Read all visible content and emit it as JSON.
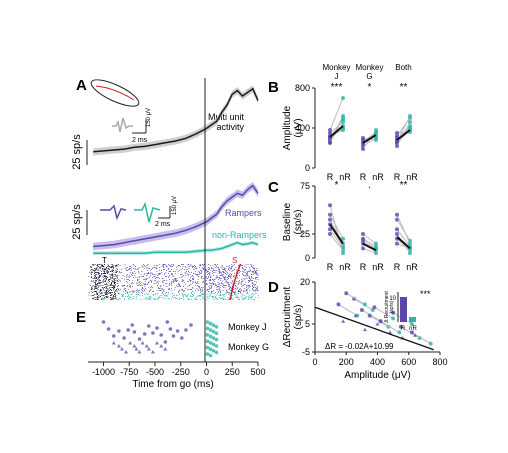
{
  "colors": {
    "multiunit": "#1a1a1a",
    "rampers": "#5b46b0",
    "nonrampers": "#2bb5a5",
    "stim": "#cc2222",
    "ci": "#999999"
  },
  "panel_labels": {
    "A": "A",
    "B": "B",
    "C": "C",
    "D": "D",
    "E": "E"
  },
  "panelA": {
    "ylabel": "25 sp/s",
    "wave_scale_ms": "2 ms",
    "wave_scale_uv": "150 μV",
    "multi_label": "Multi unit\nactivity"
  },
  "panelA2": {
    "ylabel": "25 sp/s",
    "wave_scale_ms": "2 ms",
    "wave_scale_uv": "150 μV",
    "rampers_label": "Rampers",
    "nonrampers_label": "non-Rampers",
    "raster_T": "T",
    "raster_S": "S"
  },
  "panelE": {
    "legend_j": "Monkey J",
    "legend_g": "Monkey G"
  },
  "bottom_axis": {
    "xlabel": "Time from go (ms)",
    "ticks": [
      "-1000",
      "-750",
      "-500",
      "-250",
      "0",
      "250",
      "500"
    ]
  },
  "panelB": {
    "groups": [
      "Monkey\nJ",
      "Monkey\nG",
      "Both"
    ],
    "sig": [
      "***",
      "*",
      "**"
    ],
    "ylabel": "Amplitude\n(μV)",
    "yticks": [
      "0",
      "400",
      "800"
    ],
    "xt": [
      "R",
      "nR"
    ]
  },
  "panelC": {
    "sig": [
      "*",
      ".",
      "**"
    ],
    "ylabel": "Baseline\n(sp/s)",
    "yticks": [
      "0",
      "25",
      "75"
    ],
    "xt": [
      "R",
      "nR"
    ]
  },
  "panelD": {
    "ylabel": "ΔRecruitment\n(sp/s)",
    "xlabel": "Amplitude (μV)",
    "yticks": [
      "-5",
      "5",
      "20"
    ],
    "xticks": [
      "0",
      "200",
      "400",
      "600",
      "800"
    ],
    "equation": "ΔR = -0.02A+10.99",
    "inset_ylabel": "Δ Recruitment\n(sp/s)",
    "inset_ytick": "10",
    "inset_sig": "***",
    "inset_xt": [
      "R",
      "nR"
    ]
  },
  "chart_data": [
    {
      "type": "line",
      "panel": "A-top",
      "x_unit": "ms",
      "x": [
        -1100,
        -1000,
        -900,
        -800,
        -700,
        -600,
        -500,
        -400,
        -300,
        -200,
        -100,
        0,
        50,
        100,
        150,
        200,
        250,
        300,
        350,
        400,
        450,
        500
      ],
      "series": [
        {
          "name": "Multi unit activity",
          "values": [
            18,
            19,
            20,
            21,
            23,
            24,
            26,
            28,
            30,
            33,
            38,
            44,
            48,
            52,
            62,
            70,
            82,
            86,
            80,
            84,
            88,
            75
          ]
        }
      ],
      "ylim": [
        0,
        100
      ],
      "xlim": [
        -1150,
        500
      ]
    },
    {
      "type": "line",
      "panel": "A-bottom",
      "x_unit": "ms",
      "x": [
        -1100,
        -1000,
        -900,
        -800,
        -700,
        -600,
        -500,
        -400,
        -300,
        -200,
        -100,
        0,
        50,
        100,
        150,
        200,
        250,
        300,
        350,
        400,
        450,
        500
      ],
      "series": [
        {
          "name": "Rampers",
          "values": [
            10,
            11,
            12,
            14,
            16,
            18,
            20,
            22,
            24,
            27,
            31,
            36,
            40,
            44,
            52,
            58,
            62,
            66,
            64,
            70,
            74,
            66
          ]
        },
        {
          "name": "non-Rampers",
          "values": [
            3,
            3,
            3,
            3,
            3,
            3,
            4,
            4,
            4,
            4,
            5,
            6,
            6,
            7,
            8,
            10,
            12,
            14,
            12,
            13,
            14,
            12
          ]
        }
      ],
      "ylim": [
        0,
        80
      ],
      "xlim": [
        -1150,
        500
      ]
    },
    {
      "type": "scatter",
      "panel": "B",
      "ylabel": "Amplitude (μV)",
      "ylim": [
        0,
        800
      ],
      "groups": [
        {
          "name": "Monkey J",
          "R": [
            280,
            250,
            320,
            350,
            260,
            310,
            300,
            380
          ],
          "nR": [
            420,
            500,
            380,
            460,
            520,
            400,
            480,
            700
          ],
          "mean_R": 310,
          "mean_nR": 420
        },
        {
          "name": "Monkey G",
          "R": [
            220,
            260,
            300,
            190,
            280,
            240
          ],
          "nR": [
            300,
            360,
            280,
            380,
            320,
            350
          ],
          "mean_R": 250,
          "mean_nR": 330
        },
        {
          "name": "Both",
          "R": [
            250,
            280,
            320,
            350,
            220,
            260,
            300
          ],
          "nR": [
            380,
            420,
            500,
            360,
            460,
            520,
            400
          ],
          "mean_R": 280,
          "mean_nR": 380
        }
      ]
    },
    {
      "type": "scatter",
      "panel": "C",
      "ylabel": "Baseline (sp/s)",
      "ylim": [
        0,
        75
      ],
      "groups": [
        {
          "name": "Monkey J",
          "R": [
            30,
            40,
            25,
            45,
            35,
            55
          ],
          "nR": [
            10,
            15,
            8,
            20,
            12,
            5
          ],
          "mean_R": 35,
          "mean_nR": 15
        },
        {
          "name": "Monkey G",
          "R": [
            15,
            20,
            10,
            25,
            18
          ],
          "nR": [
            8,
            12,
            5,
            15,
            10
          ],
          "mean_R": 15,
          "mean_nR": 8
        },
        {
          "name": "Both",
          "R": [
            20,
            30,
            40,
            15,
            25,
            45
          ],
          "nR": [
            8,
            12,
            18,
            10,
            5,
            15
          ],
          "mean_R": 22,
          "mean_nR": 10
        }
      ]
    },
    {
      "type": "scatter",
      "panel": "D",
      "xlabel": "Amplitude (μV)",
      "ylabel": "ΔRecruitment (sp/s)",
      "xlim": [
        0,
        800
      ],
      "ylim": [
        -5,
        20
      ],
      "points_J": [
        [
          150,
          12
        ],
        [
          250,
          14
        ],
        [
          300,
          10
        ],
        [
          350,
          8
        ],
        [
          420,
          6
        ],
        [
          500,
          9
        ],
        [
          550,
          4
        ],
        [
          620,
          2
        ],
        [
          200,
          16
        ],
        [
          380,
          11
        ]
      ],
      "points_G": [
        [
          180,
          6
        ],
        [
          260,
          8
        ],
        [
          320,
          3
        ],
        [
          400,
          5
        ],
        [
          480,
          2
        ],
        [
          560,
          0
        ],
        [
          640,
          1
        ]
      ],
      "fit": {
        "slope": -0.02,
        "intercept": 10.99,
        "x_from": 0,
        "x_to": 760
      },
      "inset": {
        "categories": [
          "R",
          "nR"
        ],
        "values": [
          10,
          2
        ]
      }
    },
    {
      "type": "scatter",
      "panel": "E",
      "x_unit": "ms",
      "xlim": [
        -1150,
        500
      ],
      "monkey_J": [
        -1000,
        -950,
        -900,
        -850,
        -800,
        -760,
        -720,
        -700,
        -650,
        -600,
        -560,
        -520,
        -480,
        -440,
        -400,
        -380,
        -350,
        -320,
        -280,
        -240,
        -200,
        -150
      ],
      "monkey_G": [
        -900,
        -850,
        -820,
        -780,
        -740,
        -700,
        -680,
        -650,
        -620,
        -580,
        -560,
        -520,
        -480,
        -440,
        -400
      ]
    }
  ]
}
